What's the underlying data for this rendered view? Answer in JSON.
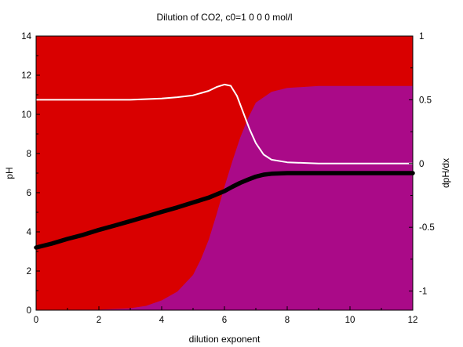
{
  "chart_data": {
    "type": "area",
    "title": "Dilution of CO2, c0=1 0 0 0 mol/l",
    "xlabel": "dilution exponent",
    "ylabel": "pH",
    "y2label": "dpH/dx",
    "xlim": [
      0,
      12
    ],
    "ylim": [
      0,
      14
    ],
    "y2lim": [
      -1.15,
      1.0
    ],
    "x_ticks": [
      "0",
      "2",
      "4",
      "6",
      "8",
      "10",
      "12"
    ],
    "y_ticks": [
      "0",
      "2",
      "4",
      "6",
      "8",
      "10",
      "12",
      "14"
    ],
    "y2_ticks": [
      "-1",
      "-0.5",
      "0",
      "0.5",
      "1"
    ],
    "grid": false,
    "legend": "none",
    "series": [
      {
        "axis": "left",
        "kind": "line",
        "color": "#000000",
        "x": [
          0,
          0.5,
          1,
          1.5,
          2,
          2.5,
          3,
          3.5,
          4,
          4.5,
          5,
          5.5,
          6,
          6.25,
          6.5,
          6.75,
          7,
          7.25,
          7.5,
          8,
          8.5,
          9,
          10,
          11,
          12
        ],
        "y": [
          3.2,
          3.4,
          3.64,
          3.85,
          4.1,
          4.32,
          4.55,
          4.78,
          5.02,
          5.25,
          5.5,
          5.75,
          6.08,
          6.3,
          6.5,
          6.67,
          6.82,
          6.92,
          6.97,
          7.0,
          7.0,
          7.0,
          7.0,
          7.0,
          7.0
        ]
      },
      {
        "axis": "right",
        "kind": "line",
        "color": "#ffffff",
        "x": [
          0,
          1,
          2,
          3,
          4,
          4.5,
          5,
          5.5,
          5.75,
          6,
          6.2,
          6.4,
          6.6,
          6.8,
          7,
          7.25,
          7.5,
          8,
          9,
          10,
          11,
          12
        ],
        "y": [
          0.5,
          0.5,
          0.5,
          0.5,
          0.51,
          0.52,
          0.535,
          0.57,
          0.6,
          0.62,
          0.61,
          0.53,
          0.4,
          0.27,
          0.16,
          0.07,
          0.03,
          0.01,
          0.0,
          0.0,
          0.0,
          0.0
        ]
      },
      {
        "axis": "left",
        "kind": "area",
        "color": "#aa0a88",
        "x": [
          0,
          2,
          3,
          3.5,
          4,
          4.5,
          5,
          5.25,
          5.5,
          5.75,
          6,
          6.25,
          6.5,
          6.75,
          7,
          7.5,
          8,
          9,
          10,
          11,
          12
        ],
        "y": [
          0.02,
          0.03,
          0.1,
          0.22,
          0.5,
          0.95,
          1.8,
          2.6,
          3.6,
          4.9,
          6.3,
          7.6,
          8.8,
          9.8,
          10.6,
          11.15,
          11.35,
          11.45,
          11.45,
          11.45,
          11.45
        ]
      }
    ],
    "colors": {
      "background_area": "#d90000",
      "species_area": "#aa0a88"
    }
  }
}
